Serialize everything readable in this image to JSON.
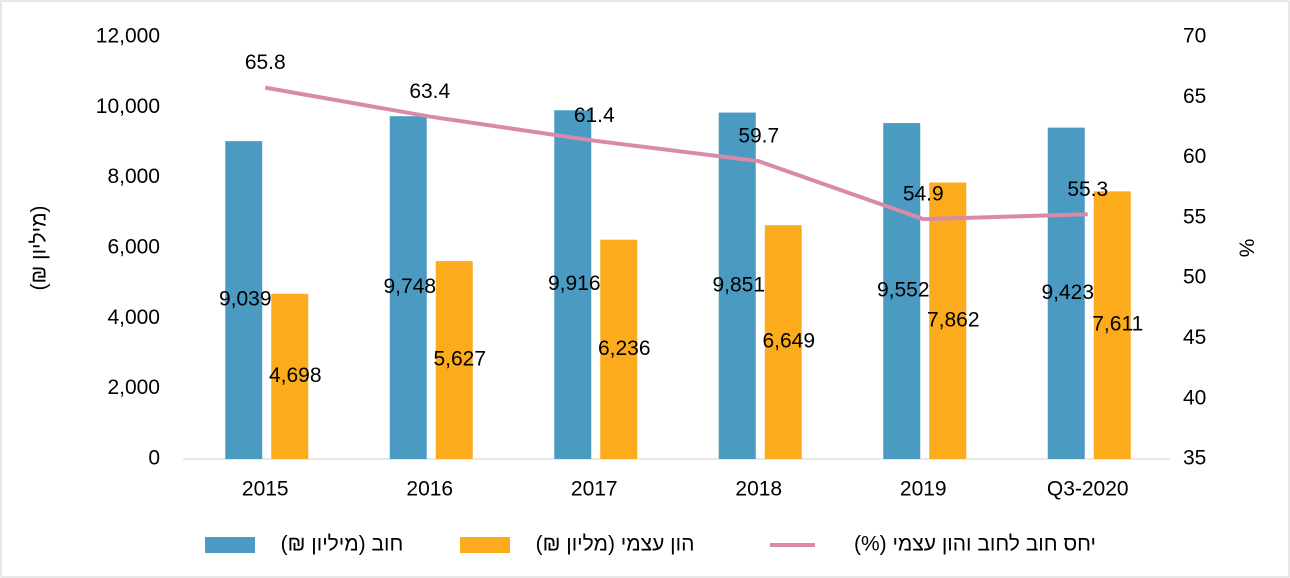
{
  "chart_data": {
    "type": "bar",
    "categories": [
      "2015",
      "2016",
      "2017",
      "2018",
      "2019",
      "Q3-2020"
    ],
    "series": [
      {
        "name": "חוב (מיליון ₪)",
        "color": "#4b9ac2",
        "values": [
          9039,
          9748,
          9916,
          9851,
          9552,
          9423
        ],
        "value_labels": [
          "9,039",
          "9,748",
          "9,916",
          "9,851",
          "9,552",
          "9,423"
        ]
      },
      {
        "name": "הון עצמי (מליון ₪)",
        "color": "#fcab1c",
        "values": [
          4698,
          5627,
          6236,
          6649,
          7862,
          7611
        ],
        "value_labels": [
          "4,698",
          "5,627",
          "6,236",
          "6,649",
          "7,862",
          "7,611"
        ]
      },
      {
        "name": "יחס חוב לחוב והון עצמי (%)",
        "color": "#d98aa8",
        "type": "line",
        "axis": "y2",
        "values": [
          65.8,
          63.4,
          61.4,
          59.7,
          54.9,
          55.3
        ]
      }
    ],
    "y_label": "(מיליון ₪)",
    "y2_label": "%",
    "ylim": [
      0,
      12000
    ],
    "yticks": [
      0,
      {
        "value": 2000,
        "label": "2,000"
      },
      {
        "value": 4000,
        "label": "4,000"
      },
      {
        "value": 6000,
        "label": "6,000"
      },
      {
        "value": 8000,
        "label": "8,000"
      },
      {
        "value": 10000,
        "label": "10,000"
      },
      {
        "value": 12000,
        "label": "12,000"
      }
    ],
    "y2lim": [
      35,
      70
    ],
    "y2ticks": [
      35,
      40,
      45,
      50,
      55,
      60,
      65,
      70
    ],
    "legend": "bottom"
  }
}
